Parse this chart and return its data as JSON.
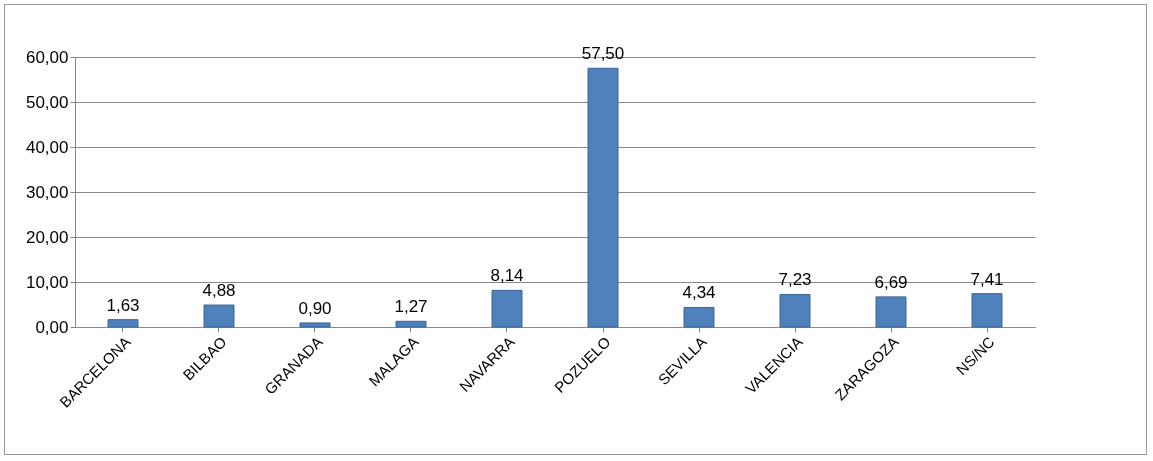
{
  "chart_data": {
    "type": "bar",
    "categories": [
      "BARCELONA",
      "BILBAO",
      "GRANADA",
      "MALAGA",
      "NAVARRA",
      "POZUELO",
      "SEVILLA",
      "VALENCIA",
      "ZARAGOZA",
      "NS/NC"
    ],
    "values": [
      1.63,
      4.88,
      0.9,
      1.27,
      8.14,
      57.5,
      4.34,
      7.23,
      6.69,
      7.41
    ],
    "value_labels": [
      "1,63",
      "4,88",
      "0,90",
      "1,27",
      "8,14",
      "57,50",
      "4,34",
      "7,23",
      "6,69",
      "7,41"
    ],
    "color": "#4f81bd",
    "ylim": [
      0,
      60
    ],
    "yticks": [
      {
        "value": 0,
        "label": "0,00"
      },
      {
        "value": 10,
        "label": "10,00"
      },
      {
        "value": 20,
        "label": "20,00"
      },
      {
        "value": 30,
        "label": "30,00"
      },
      {
        "value": 40,
        "label": "40,00"
      },
      {
        "value": 50,
        "label": "50,00"
      },
      {
        "value": 60,
        "label": "60,00"
      }
    ],
    "grid": "y"
  }
}
